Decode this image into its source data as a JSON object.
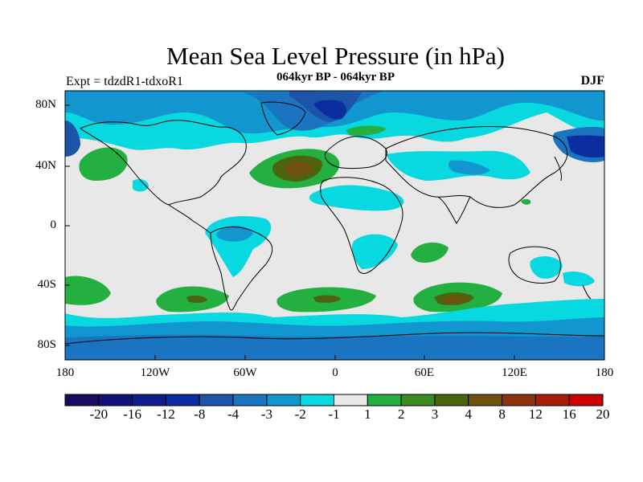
{
  "title": "Mean Sea Level Pressure (in hPa)",
  "subtitle": "064kyr BP - 064kyr BP",
  "experiment": "Expt = tdzdR1-tdxoR1",
  "season": "DJF",
  "map": {
    "projection": "cylindrical equidistant",
    "lon_range": [
      -180,
      180
    ],
    "lat_range": [
      -90,
      90
    ],
    "lon_ticks": [
      "180",
      "120W",
      "60W",
      "0",
      "60E",
      "120E",
      "180"
    ],
    "lat_ticks": [
      "80N",
      "40N",
      "0",
      "40S",
      "80S"
    ],
    "background_fill": "1 to -1 (near zero)"
  },
  "colorbar": {
    "labels": [
      "-20",
      "-16",
      "-12",
      "-8",
      "-4",
      "-3",
      "-2",
      "-1",
      "1",
      "2",
      "3",
      "4",
      "8",
      "12",
      "16",
      "20"
    ],
    "colors": [
      "#1a0a60",
      "#10107a",
      "#101c8c",
      "#0a2ea0",
      "#1c54aa",
      "#1a74c0",
      "#1296d0",
      "#08d8e0",
      "#e8e8e8",
      "#24b040",
      "#3c8a20",
      "#4c6410",
      "#705010",
      "#8c3410",
      "#a81c0a",
      "#cc0000"
    ]
  },
  "colors": {
    "neutral": "#e8e8e8",
    "cyan": "#08d8e0",
    "light_blue": "#1296d0",
    "mid_blue": "#1a74c0",
    "blue": "#1c54aa",
    "dark_blue": "#0a2ea0",
    "green": "#24b040",
    "olive": "#4c6410",
    "brown": "#705010"
  }
}
